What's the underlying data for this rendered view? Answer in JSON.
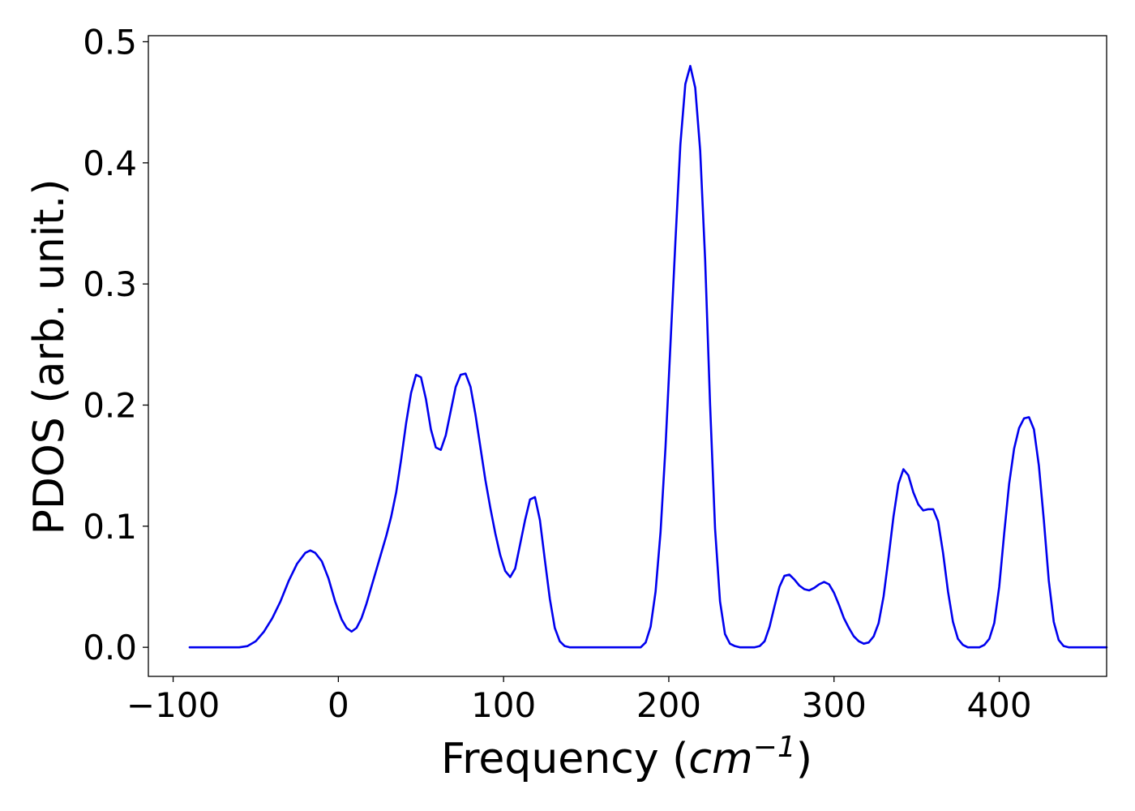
{
  "chart_data": {
    "type": "line",
    "title": "",
    "xlabel": {
      "prefix": "Frequency (",
      "base": "cm",
      "superscript": "−1",
      "suffix": ")"
    },
    "ylabel": "PDOS (arb. unit.)",
    "xlim": [
      -115,
      465
    ],
    "ylim": [
      -0.024,
      0.505
    ],
    "xticks": [
      {
        "value": -100,
        "label": "−100"
      },
      {
        "value": 0,
        "label": "0"
      },
      {
        "value": 100,
        "label": "100"
      },
      {
        "value": 200,
        "label": "200"
      },
      {
        "value": 300,
        "label": "300"
      },
      {
        "value": 400,
        "label": "400"
      }
    ],
    "yticks": [
      {
        "value": 0.0,
        "label": "0.0"
      },
      {
        "value": 0.1,
        "label": "0.1"
      },
      {
        "value": 0.2,
        "label": "0.2"
      },
      {
        "value": 0.3,
        "label": "0.3"
      },
      {
        "value": 0.4,
        "label": "0.4"
      },
      {
        "value": 0.5,
        "label": "0.5"
      }
    ],
    "grid": false,
    "series": [
      {
        "color": "#0000ee",
        "points": [
          [
            -90,
            0.0
          ],
          [
            -60,
            0.0
          ],
          [
            -55,
            0.001
          ],
          [
            -50,
            0.005
          ],
          [
            -45,
            0.013
          ],
          [
            -40,
            0.024
          ],
          [
            -35,
            0.038
          ],
          [
            -30,
            0.055
          ],
          [
            -25,
            0.069
          ],
          [
            -20,
            0.078
          ],
          [
            -17,
            0.08
          ],
          [
            -14,
            0.078
          ],
          [
            -10,
            0.071
          ],
          [
            -6,
            0.057
          ],
          [
            -2,
            0.038
          ],
          [
            2,
            0.023
          ],
          [
            5,
            0.016
          ],
          [
            8,
            0.013
          ],
          [
            11,
            0.016
          ],
          [
            14,
            0.024
          ],
          [
            17,
            0.036
          ],
          [
            20,
            0.05
          ],
          [
            23,
            0.064
          ],
          [
            26,
            0.078
          ],
          [
            29,
            0.092
          ],
          [
            32,
            0.108
          ],
          [
            35,
            0.128
          ],
          [
            38,
            0.155
          ],
          [
            41,
            0.185
          ],
          [
            44,
            0.21
          ],
          [
            47,
            0.225
          ],
          [
            50,
            0.223
          ],
          [
            53,
            0.205
          ],
          [
            56,
            0.18
          ],
          [
            59,
            0.165
          ],
          [
            62,
            0.163
          ],
          [
            65,
            0.175
          ],
          [
            68,
            0.195
          ],
          [
            71,
            0.215
          ],
          [
            74,
            0.225
          ],
          [
            77,
            0.226
          ],
          [
            80,
            0.215
          ],
          [
            83,
            0.192
          ],
          [
            86,
            0.165
          ],
          [
            89,
            0.138
          ],
          [
            92,
            0.115
          ],
          [
            95,
            0.094
          ],
          [
            98,
            0.076
          ],
          [
            101,
            0.063
          ],
          [
            104,
            0.058
          ],
          [
            107,
            0.065
          ],
          [
            110,
            0.085
          ],
          [
            113,
            0.105
          ],
          [
            116,
            0.122
          ],
          [
            119,
            0.124
          ],
          [
            122,
            0.105
          ],
          [
            125,
            0.072
          ],
          [
            128,
            0.04
          ],
          [
            131,
            0.016
          ],
          [
            134,
            0.005
          ],
          [
            137,
            0.001
          ],
          [
            140,
            0.0
          ],
          [
            183,
            0.0
          ],
          [
            186,
            0.004
          ],
          [
            189,
            0.017
          ],
          [
            192,
            0.046
          ],
          [
            195,
            0.095
          ],
          [
            198,
            0.165
          ],
          [
            201,
            0.25
          ],
          [
            204,
            0.335
          ],
          [
            207,
            0.415
          ],
          [
            210,
            0.465
          ],
          [
            213,
            0.48
          ],
          [
            216,
            0.462
          ],
          [
            219,
            0.41
          ],
          [
            222,
            0.32
          ],
          [
            225,
            0.2
          ],
          [
            228,
            0.098
          ],
          [
            231,
            0.038
          ],
          [
            234,
            0.011
          ],
          [
            237,
            0.003
          ],
          [
            240,
            0.001
          ],
          [
            243,
            0.0
          ],
          [
            252,
            0.0
          ],
          [
            255,
            0.001
          ],
          [
            258,
            0.005
          ],
          [
            261,
            0.017
          ],
          [
            264,
            0.034
          ],
          [
            267,
            0.05
          ],
          [
            270,
            0.059
          ],
          [
            273,
            0.06
          ],
          [
            276,
            0.056
          ],
          [
            279,
            0.051
          ],
          [
            282,
            0.048
          ],
          [
            285,
            0.047
          ],
          [
            288,
            0.049
          ],
          [
            291,
            0.052
          ],
          [
            294,
            0.054
          ],
          [
            297,
            0.052
          ],
          [
            300,
            0.045
          ],
          [
            303,
            0.035
          ],
          [
            306,
            0.024
          ],
          [
            309,
            0.016
          ],
          [
            312,
            0.009
          ],
          [
            315,
            0.005
          ],
          [
            318,
            0.003
          ],
          [
            321,
            0.004
          ],
          [
            324,
            0.009
          ],
          [
            327,
            0.02
          ],
          [
            330,
            0.042
          ],
          [
            333,
            0.074
          ],
          [
            336,
            0.108
          ],
          [
            339,
            0.135
          ],
          [
            342,
            0.147
          ],
          [
            345,
            0.142
          ],
          [
            348,
            0.128
          ],
          [
            351,
            0.118
          ],
          [
            354,
            0.113
          ],
          [
            357,
            0.114
          ],
          [
            360,
            0.114
          ],
          [
            363,
            0.104
          ],
          [
            366,
            0.078
          ],
          [
            369,
            0.046
          ],
          [
            372,
            0.021
          ],
          [
            375,
            0.007
          ],
          [
            378,
            0.002
          ],
          [
            381,
            0.0
          ],
          [
            388,
            0.0
          ],
          [
            391,
            0.002
          ],
          [
            394,
            0.007
          ],
          [
            397,
            0.02
          ],
          [
            400,
            0.05
          ],
          [
            403,
            0.094
          ],
          [
            406,
            0.135
          ],
          [
            409,
            0.164
          ],
          [
            412,
            0.181
          ],
          [
            415,
            0.189
          ],
          [
            418,
            0.19
          ],
          [
            421,
            0.18
          ],
          [
            424,
            0.15
          ],
          [
            427,
            0.105
          ],
          [
            430,
            0.055
          ],
          [
            433,
            0.021
          ],
          [
            436,
            0.006
          ],
          [
            439,
            0.001
          ],
          [
            442,
            0.0
          ],
          [
            465,
            0.0
          ]
        ]
      }
    ]
  }
}
